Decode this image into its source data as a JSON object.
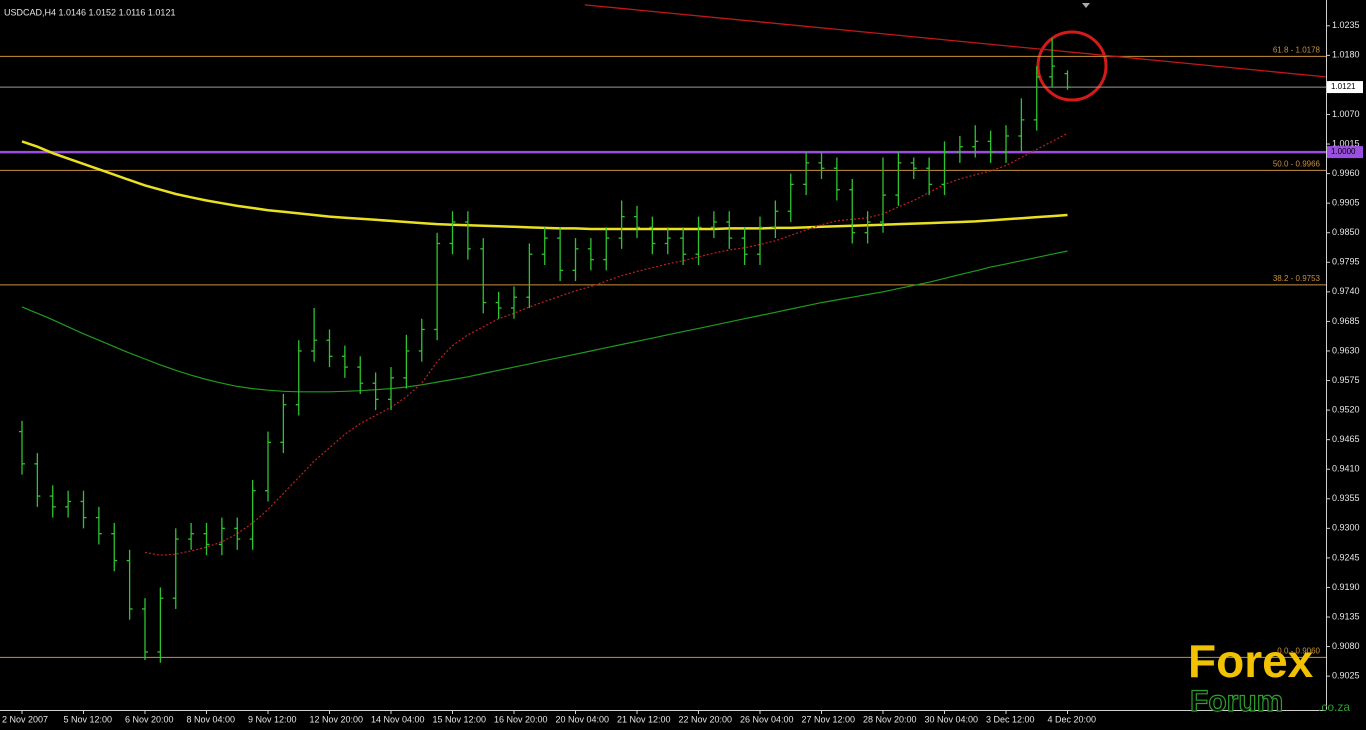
{
  "chart_data": {
    "type": "ohlc",
    "title": "USDCAD,H4 1.0146 1.0152 1.0116 1.0121",
    "categories": [
      "2 Nov 2007",
      null,
      null,
      null,
      "5 Nov 12:00",
      null,
      null,
      null,
      "6 Nov 20:00",
      null,
      null,
      null,
      "8 Nov 04:00",
      null,
      null,
      null,
      "9 Nov 12:00",
      null,
      null,
      null,
      "12 Nov 20:00",
      null,
      null,
      null,
      "14 Nov 04:00",
      null,
      null,
      null,
      "15 Nov 12:00",
      null,
      null,
      null,
      "16 Nov 20:00",
      null,
      null,
      null,
      "20 Nov 04:00",
      null,
      null,
      null,
      "21 Nov 12:00",
      null,
      null,
      null,
      "22 Nov 20:00",
      null,
      null,
      null,
      "26 Nov 04:00",
      null,
      null,
      null,
      "27 Nov 12:00",
      null,
      null,
      null,
      "28 Nov 20:00",
      null,
      null,
      null,
      "30 Nov 04:00",
      null,
      null,
      null,
      "3 Dec 12:00",
      null,
      null,
      null,
      "4 Dec 20:00"
    ],
    "color": "#2fc42f",
    "opens": [
      0.948,
      0.942,
      0.936,
      0.934,
      0.935,
      0.932,
      0.929,
      0.924,
      0.915,
      0.907,
      0.917,
      0.928,
      0.929,
      0.927,
      0.93,
      0.928,
      0.937,
      0.946,
      0.953,
      0.963,
      0.965,
      0.962,
      0.96,
      0.957,
      0.954,
      0.958,
      0.963,
      0.967,
      0.983,
      0.987,
      0.982,
      0.972,
      0.971,
      0.973,
      0.981,
      0.984,
      0.978,
      0.982,
      0.98,
      0.984,
      0.988,
      0.986,
      0.983,
      0.984,
      0.981,
      0.986,
      0.987,
      0.984,
      0.981,
      0.986,
      0.989,
      0.994,
      0.998,
      0.997,
      0.993,
      0.985,
      0.987,
      0.992,
      0.998,
      0.997,
      0.994,
      1.0,
      1.001,
      1.002,
      1.0,
      1.003,
      1.006,
      1.014,
      1.0146
    ],
    "highs": [
      0.95,
      0.944,
      0.938,
      0.937,
      0.937,
      0.934,
      0.931,
      0.926,
      0.917,
      0.919,
      0.93,
      0.931,
      0.931,
      0.932,
      0.932,
      0.939,
      0.948,
      0.955,
      0.965,
      0.971,
      0.967,
      0.964,
      0.962,
      0.959,
      0.96,
      0.966,
      0.969,
      0.985,
      0.989,
      0.989,
      0.984,
      0.974,
      0.975,
      0.983,
      0.986,
      0.986,
      0.984,
      0.984,
      0.986,
      0.991,
      0.99,
      0.988,
      0.986,
      0.986,
      0.988,
      0.989,
      0.989,
      0.986,
      0.988,
      0.991,
      0.996,
      1.0,
      1.0,
      0.999,
      0.995,
      0.989,
      0.999,
      1.0,
      0.999,
      0.999,
      1.002,
      1.003,
      1.005,
      1.004,
      1.005,
      1.01,
      1.016,
      1.0212,
      1.0152
    ],
    "lows": [
      0.94,
      0.934,
      0.932,
      0.932,
      0.93,
      0.927,
      0.922,
      0.913,
      0.9055,
      0.905,
      0.915,
      0.926,
      0.925,
      0.925,
      0.926,
      0.926,
      0.935,
      0.944,
      0.951,
      0.961,
      0.96,
      0.958,
      0.955,
      0.952,
      0.952,
      0.956,
      0.961,
      0.965,
      0.981,
      0.98,
      0.97,
      0.969,
      0.969,
      0.971,
      0.979,
      0.976,
      0.976,
      0.978,
      0.978,
      0.982,
      0.984,
      0.981,
      0.981,
      0.979,
      0.979,
      0.984,
      0.982,
      0.979,
      0.979,
      0.984,
      0.987,
      0.992,
      0.995,
      0.991,
      0.983,
      0.983,
      0.985,
      0.99,
      0.995,
      0.992,
      0.992,
      0.998,
      0.999,
      0.998,
      0.998,
      1.0,
      1.004,
      1.012,
      1.0116
    ],
    "closes": [
      0.942,
      0.936,
      0.934,
      0.935,
      0.932,
      0.929,
      0.924,
      0.915,
      0.907,
      0.917,
      0.928,
      0.929,
      0.927,
      0.93,
      0.928,
      0.937,
      0.946,
      0.953,
      0.963,
      0.965,
      0.962,
      0.96,
      0.957,
      0.954,
      0.958,
      0.963,
      0.967,
      0.983,
      0.987,
      0.982,
      0.972,
      0.971,
      0.973,
      0.981,
      0.984,
      0.978,
      0.982,
      0.98,
      0.984,
      0.988,
      0.986,
      0.983,
      0.984,
      0.981,
      0.986,
      0.987,
      0.984,
      0.981,
      0.986,
      0.989,
      0.994,
      0.998,
      0.997,
      0.993,
      0.985,
      0.987,
      0.992,
      0.998,
      0.997,
      0.994,
      1.0,
      1.001,
      1.002,
      1.0,
      1.003,
      1.006,
      1.014,
      1.016,
      1.0121
    ],
    "moving_averages": [
      {
        "color": "#e8e020",
        "style": "solid",
        "values": [
          1.002,
          1.001,
          0.9998,
          0.9988,
          0.9978,
          0.9968,
          0.9958,
          0.9948,
          0.9938,
          0.993,
          0.9922,
          0.9916,
          0.991,
          0.9905,
          0.99,
          0.9896,
          0.9892,
          0.9889,
          0.9886,
          0.9883,
          0.988,
          0.9878,
          0.9876,
          0.9874,
          0.9872,
          0.987,
          0.9868,
          0.9866,
          0.9865,
          0.9864,
          0.9863,
          0.9862,
          0.9861,
          0.986,
          0.9859,
          0.9858,
          0.9858,
          0.9857,
          0.9857,
          0.9857,
          0.9857,
          0.9857,
          0.9857,
          0.9857,
          0.9857,
          0.9857,
          0.9858,
          0.9858,
          0.9858,
          0.9859,
          0.9859,
          0.986,
          0.9861,
          0.9862,
          0.9863,
          0.9864,
          0.9865,
          0.9866,
          0.9867,
          0.9868,
          0.9869,
          0.987,
          0.9871,
          0.9873,
          0.9875,
          0.9877,
          0.9879,
          0.9881,
          0.9883
        ]
      },
      {
        "color": "#1f9a1f",
        "style": "solid",
        "values": [
          0.9712,
          0.97,
          0.9688,
          0.9675,
          0.9662,
          0.965,
          0.9638,
          0.9626,
          0.9615,
          0.9604,
          0.9594,
          0.9585,
          0.9577,
          0.957,
          0.9564,
          0.956,
          0.9557,
          0.9555,
          0.9554,
          0.9554,
          0.9554,
          0.9555,
          0.9556,
          0.9558,
          0.956,
          0.9563,
          0.9567,
          0.9572,
          0.9577,
          0.9582,
          0.9588,
          0.9594,
          0.96,
          0.9606,
          0.9612,
          0.9618,
          0.9624,
          0.963,
          0.9636,
          0.9642,
          0.9648,
          0.9654,
          0.966,
          0.9666,
          0.9672,
          0.9678,
          0.9684,
          0.969,
          0.9696,
          0.9702,
          0.9708,
          0.9714,
          0.972,
          0.9725,
          0.973,
          0.9735,
          0.974,
          0.9746,
          0.9752,
          0.9758,
          0.9765,
          0.9772,
          0.9779,
          0.9786,
          0.9792,
          0.9798,
          0.9804,
          0.981,
          0.9816
        ]
      },
      {
        "color": "#c02020",
        "style": "dotted",
        "values": [
          null,
          null,
          null,
          null,
          null,
          null,
          null,
          null,
          0.9255,
          0.925,
          0.9252,
          0.9258,
          0.9265,
          0.9275,
          0.929,
          0.931,
          0.9335,
          0.9365,
          0.9395,
          0.9425,
          0.945,
          0.9475,
          0.9495,
          0.951,
          0.9525,
          0.9545,
          0.957,
          0.961,
          0.964,
          0.966,
          0.9675,
          0.969,
          0.97,
          0.9712,
          0.9722,
          0.9732,
          0.9742,
          0.975,
          0.976,
          0.977,
          0.9778,
          0.9785,
          0.9792,
          0.9798,
          0.9805,
          0.9812,
          0.9818,
          0.9822,
          0.9828,
          0.9835,
          0.9845,
          0.9855,
          0.9865,
          0.9872,
          0.9875,
          0.9878,
          0.9885,
          0.9898,
          0.991,
          0.9925,
          0.994,
          0.995,
          0.9958,
          0.9965,
          0.9975,
          0.999,
          1.0005,
          1.002,
          1.0035
        ]
      }
    ],
    "trend_line": {
      "color": "#c01818",
      "x": [
        36.6,
        84.8
      ],
      "values": [
        1.0274,
        1.014
      ]
    },
    "hlines": [
      {
        "value": 1.0178,
        "label": "61.8 - 1.0178",
        "color": "#c8903c",
        "label_place": "plot"
      },
      {
        "value": 1.0121,
        "label": "1.0121",
        "color": "#9a9a9a",
        "label_place": "axis"
      },
      {
        "value": 1.0,
        "label": "1.0000",
        "color": "#9b4fe0",
        "label_place": "axis"
      },
      {
        "value": 0.9966,
        "label": "50.0 - 0.9966",
        "color": "#c8903c",
        "label_place": "plot"
      },
      {
        "value": 0.9753,
        "label": "38.2 - 0.9753",
        "color": "#c8903c",
        "label_place": "plot"
      },
      {
        "value": 0.906,
        "label": "0.0 - 0.9060",
        "color": "#c8903c",
        "label_place": "plot"
      }
    ],
    "ylim": [
      0.8962,
      1.0283
    ],
    "yticks": [
      1.0235,
      {
        "value": 1.018,
        "label": "1.0180"
      },
      {
        "value": 1.007,
        "label": "1.0070"
      },
      1.0015,
      {
        "value": 0.996,
        "label": "0.9960"
      },
      0.9905,
      {
        "value": 0.985,
        "label": "0.9850"
      },
      0.9795,
      {
        "value": 0.974,
        "label": "0.9740"
      },
      0.9685,
      {
        "value": 0.963,
        "label": "0.9630"
      },
      0.9575,
      {
        "value": 0.952,
        "label": "0.9520"
      },
      0.9465,
      {
        "value": 0.941,
        "label": "0.9410"
      },
      0.9355,
      {
        "value": 0.93,
        "label": "0.9300"
      },
      0.9245,
      {
        "value": 0.919,
        "label": "0.9190"
      },
      0.9135,
      {
        "value": 0.908,
        "label": "0.9080"
      },
      0.9025
    ],
    "grid": false,
    "logo": {
      "first": "Forex",
      "second": "Forum",
      "domain": ".co.za"
    }
  }
}
